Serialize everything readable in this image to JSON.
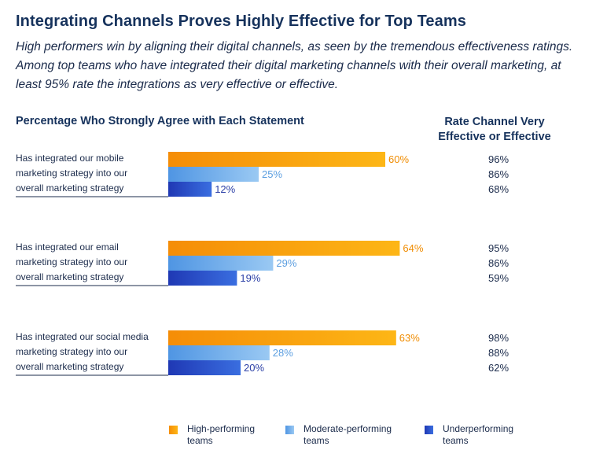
{
  "title": "Integrating Channels Proves Highly Effective for Top Teams",
  "subtitle": "High performers win by aligning their digital channels, as seen by the tremendous effectiveness ratings. Among top teams who have integrated their digital marketing channels with their overall marketing, at least 95% rate the integrations as very effective or effective.",
  "left_header": "Percentage Who Strongly Agree with Each Statement",
  "right_header": "Rate Channel Very Effective or Effective",
  "colors": {
    "high": "#f5a20c",
    "moderate": "#74b2ec",
    "under": "#2a4fc7",
    "high_label": "#f08c00",
    "moderate_label": "#5b9ee0",
    "under_label": "#2b3fa6"
  },
  "chart_data": {
    "type": "bar",
    "orientation": "horizontal",
    "categories": [
      [
        "Has integrated our mobile",
        "marketing strategy into our",
        "overall marketing strategy"
      ],
      [
        "Has integrated our email",
        "marketing strategy into our",
        "overall marketing strategy"
      ],
      [
        "Has integrated our social media",
        "marketing strategy into our",
        "overall marketing strategy"
      ]
    ],
    "series": [
      {
        "name": "High-performing teams",
        "values": [
          60,
          64,
          63
        ],
        "effectiveness": [
          96,
          95,
          98
        ]
      },
      {
        "name": "Moderate-performing teams",
        "values": [
          25,
          29,
          28
        ],
        "effectiveness": [
          86,
          86,
          88
        ]
      },
      {
        "name": "Underperforming teams",
        "values": [
          12,
          19,
          20
        ],
        "effectiveness": [
          68,
          59,
          62
        ]
      }
    ],
    "unit": "%",
    "legend_position": "bottom"
  },
  "legend": [
    {
      "line1": "High-performing",
      "line2": "teams"
    },
    {
      "line1": "Moderate-performing",
      "line2": "teams"
    },
    {
      "line1": "Underperforming",
      "line2": "teams"
    }
  ]
}
